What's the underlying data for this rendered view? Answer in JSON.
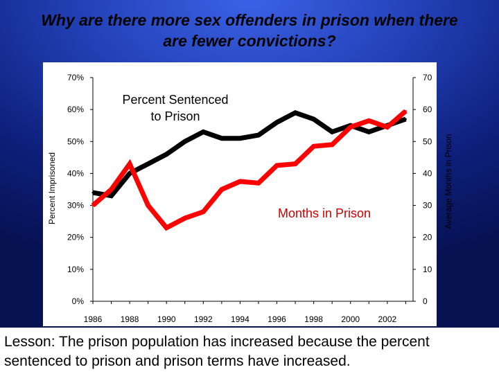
{
  "slide": {
    "title": "Why are there more sex offenders in prison when there are fewer convictions?",
    "caption": "Lesson: The prison population has increased because the percent sentenced to prison and prison terms have increased."
  },
  "colors": {
    "background": "#2342b8",
    "percent_series": "#000000",
    "months_series": "#ff0000",
    "months_label": "#cc0000"
  },
  "chart_data": {
    "type": "line",
    "title": "",
    "xlabel": "",
    "ylabel_left": "Percent Imprisoned",
    "ylabel_right": "Average Months in Prison",
    "x_ticks": [
      "1986",
      "1988",
      "1990",
      "1992",
      "1994",
      "1996",
      "1998",
      "2000",
      "2002"
    ],
    "y_left_ticks": [
      "0%",
      "10%",
      "20%",
      "30%",
      "40%",
      "50%",
      "60%",
      "70%"
    ],
    "y_right_ticks": [
      "0",
      "10",
      "20",
      "30",
      "40",
      "50",
      "60",
      "70"
    ],
    "y_left_lim": [
      0,
      70
    ],
    "y_right_lim": [
      0,
      70
    ],
    "x": [
      1986,
      1987,
      1988,
      1989,
      1990,
      1991,
      1992,
      1993,
      1994,
      1995,
      1996,
      1997,
      1998,
      1999,
      2000,
      2001,
      2002,
      2003
    ],
    "series": [
      {
        "name": "Percent Sentenced to Prison",
        "axis": "left",
        "unit": "%",
        "values": [
          34,
          33,
          40,
          43,
          46,
          50,
          53,
          51,
          51,
          52,
          56,
          59,
          57,
          53,
          55,
          53,
          55,
          57
        ]
      },
      {
        "name": "Months in Prison",
        "axis": "right",
        "unit": "months",
        "values": [
          30,
          35,
          43,
          30,
          23,
          26,
          28,
          35,
          37.5,
          37,
          42.5,
          43,
          48.5,
          49,
          54.5,
          56.5,
          54.5,
          59.5
        ]
      }
    ],
    "annotations": [
      {
        "text_lines": [
          "Percent Sentenced",
          "to Prison"
        ],
        "series": "Percent Sentenced to Prison"
      },
      {
        "text_lines": [
          "Months in Prison"
        ],
        "series": "Months in Prison"
      }
    ],
    "grid": false,
    "legend": "none"
  }
}
